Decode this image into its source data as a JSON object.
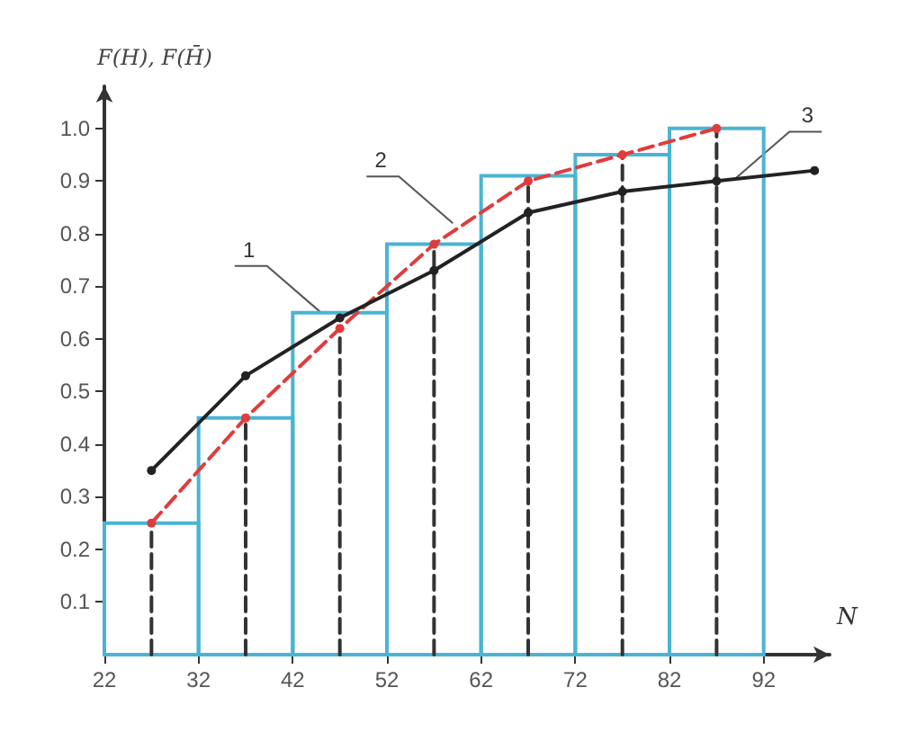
{
  "chart_data": {
    "type": "histogram",
    "ylabel": "F(H), F(H̄)",
    "xlabel": "N",
    "xlim": [
      22,
      99
    ],
    "xticks": [
      22,
      32,
      42,
      52,
      62,
      72,
      82,
      92
    ],
    "ylim": [
      0,
      1.08
    ],
    "yticks": [
      0.1,
      0.2,
      0.3,
      0.4,
      0.5,
      0.6,
      0.7,
      0.8,
      0.9,
      {
        "value": 1,
        "label": "1.0"
      }
    ],
    "marker": "circle",
    "grid": false,
    "series": [
      {
        "color": "#4ab4d4",
        "bins": [
          22,
          32,
          42,
          52,
          62,
          72,
          82,
          92
        ],
        "values": [
          0.25,
          0.45,
          0.65,
          0.78,
          0.91,
          0.95,
          1.0
        ]
      },
      {
        "type": "line",
        "color": "#333333",
        "line_style": "dashed",
        "marker": "none",
        "x": [
          27,
          27,
          null,
          37,
          37,
          null,
          47,
          47,
          null,
          57,
          57,
          null,
          67,
          67,
          null,
          77,
          77,
          null,
          87,
          87
        ],
        "values": [
          0,
          0.25,
          null,
          0,
          0.45,
          null,
          0,
          0.62,
          null,
          0,
          0.78,
          null,
          0,
          0.9,
          null,
          0,
          0.95,
          null,
          0,
          1.0
        ]
      },
      {
        "type": "line",
        "color": "#e03c3c",
        "line_style": "dashed",
        "x": [
          27,
          37,
          47,
          57,
          67,
          77,
          87
        ],
        "values": [
          0.25,
          0.45,
          0.62,
          0.78,
          0.9,
          0.95,
          1.0
        ]
      },
      {
        "type": "line",
        "color": "#222222",
        "line_style": "solid",
        "x": [
          27,
          37,
          47,
          57,
          67,
          77,
          87,
          97.4
        ],
        "values": [
          0.35,
          0.53,
          0.64,
          0.73,
          0.84,
          0.88,
          0.9,
          0.92
        ]
      }
    ],
    "annotations": [
      {
        "text": "1",
        "x": 45,
        "y": 0.65
      },
      {
        "text": "2",
        "x": 59,
        "y": 0.82
      },
      {
        "text": "3",
        "x": 89,
        "y": 0.905
      }
    ]
  }
}
